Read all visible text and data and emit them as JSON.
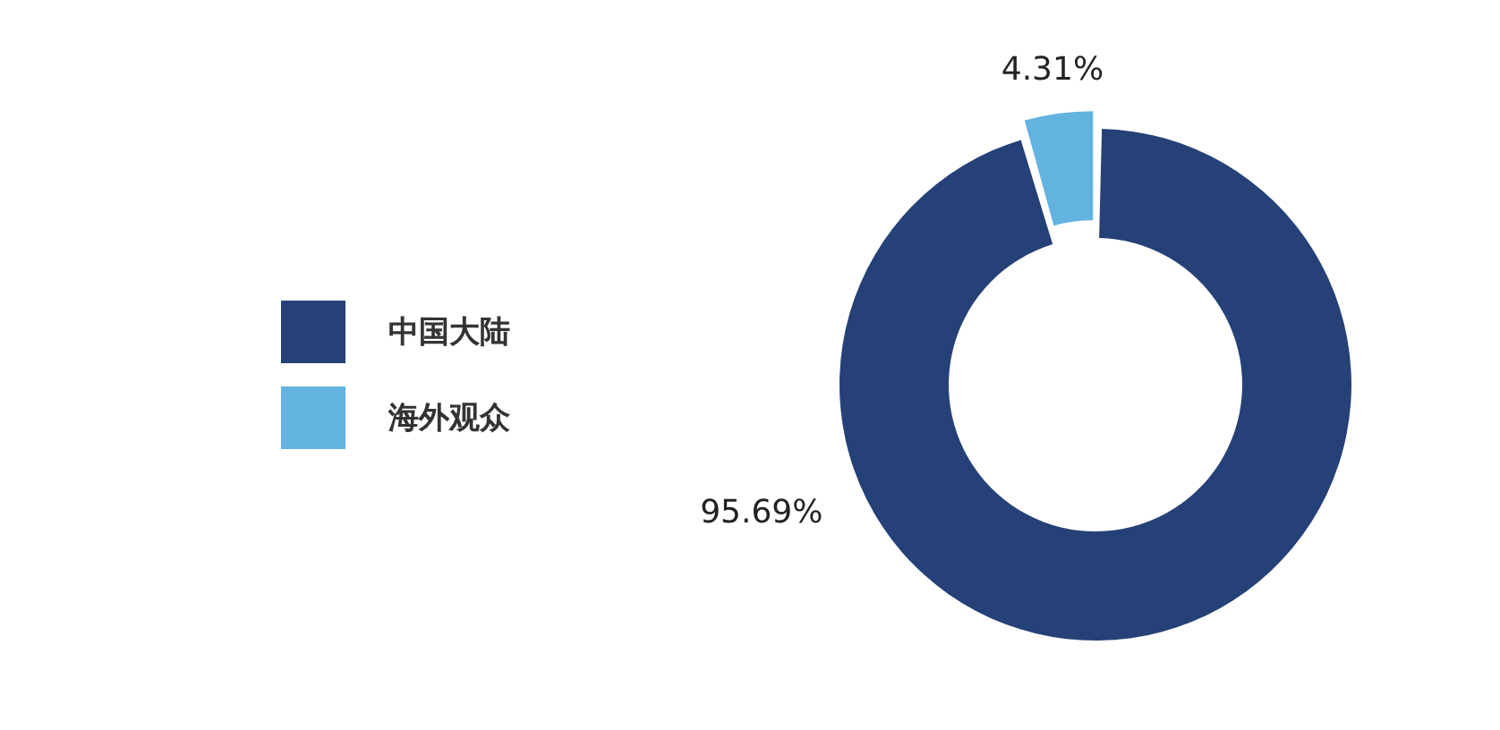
{
  "chart_data": {
    "type": "donut",
    "categories": [
      "中国大陆",
      "海外观众"
    ],
    "values": [
      95.69,
      4.31
    ],
    "colors": [
      "#254177",
      "#62b3e0"
    ],
    "value_labels": [
      "95.69%",
      "4.31%"
    ],
    "legend": "left"
  }
}
